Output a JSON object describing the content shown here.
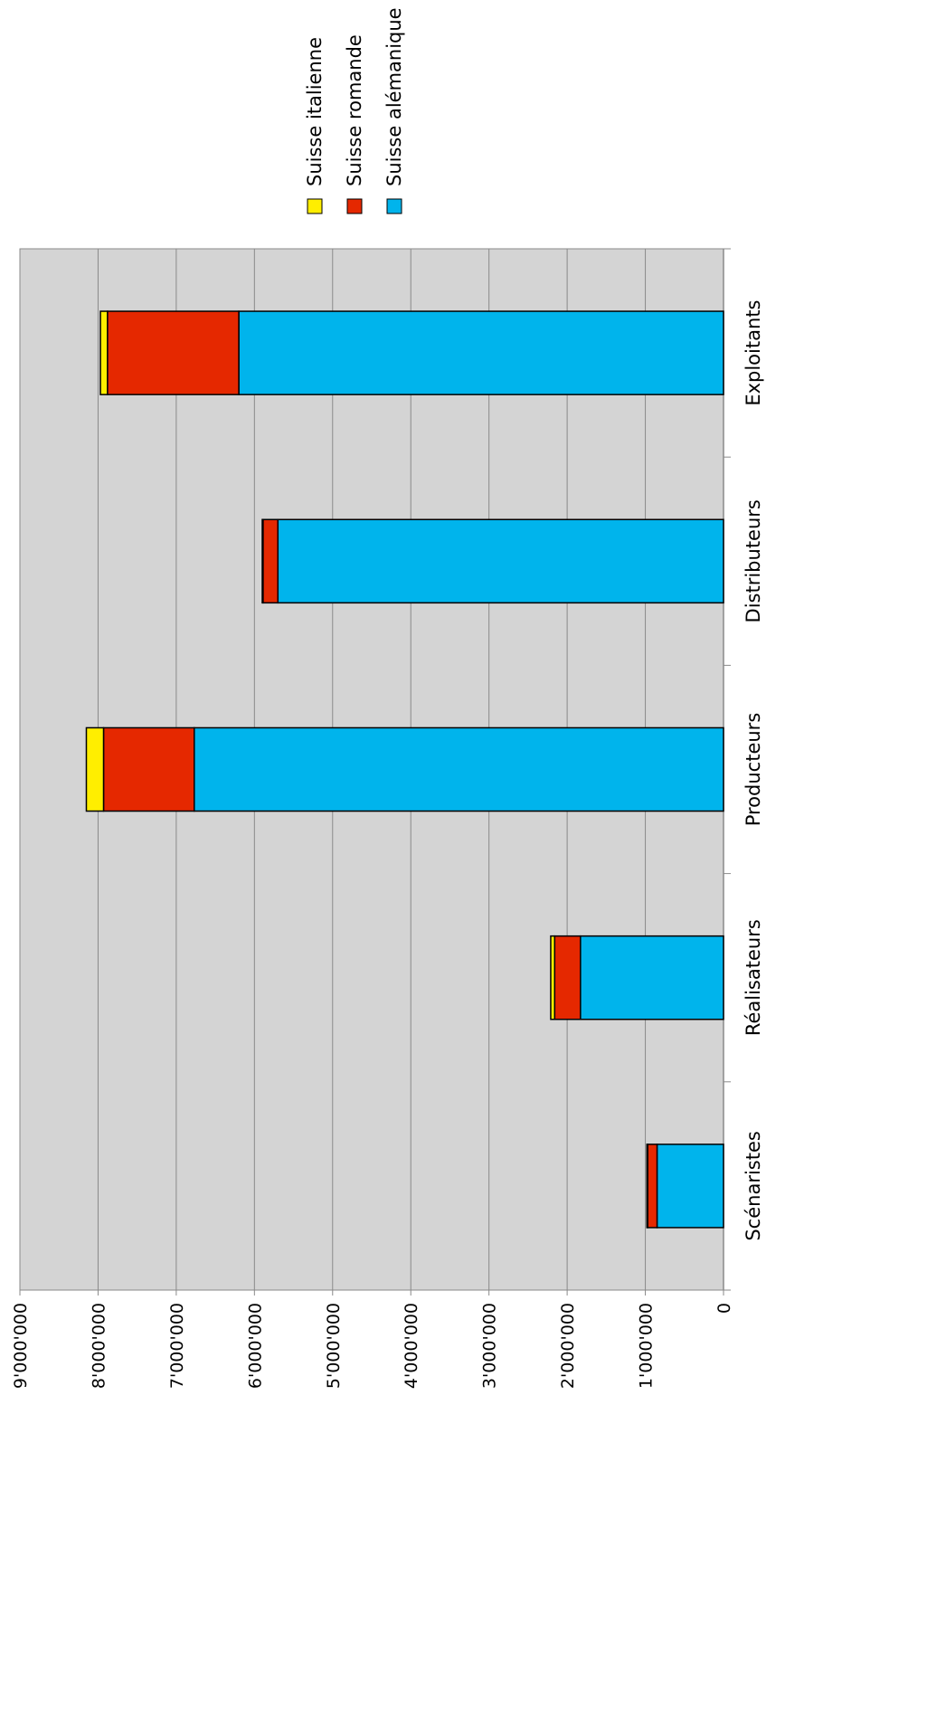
{
  "chart_data": {
    "type": "bar",
    "stacked": true,
    "orientation": "rotated-90-clockwise",
    "categories": [
      "Scénaristes",
      "Réalisateurs",
      "Producteurs",
      "Distributeurs",
      "Exploitants"
    ],
    "series": [
      {
        "name": "Suisse alémanique",
        "color": "#00b4ec",
        "values": [
          850000,
          1830000,
          6770000,
          5700000,
          6200000
        ]
      },
      {
        "name": "Suisse romande",
        "color": "#e52800",
        "values": [
          120000,
          330000,
          1160000,
          190000,
          1680000
        ]
      },
      {
        "name": "Suisse italienne",
        "color": "#ffee00",
        "values": [
          10000,
          50000,
          220000,
          10000,
          90000
        ]
      }
    ],
    "ylim": [
      0,
      9000000
    ],
    "yticks": [
      "0",
      "1'000'000",
      "2'000'000",
      "3'000'000",
      "4'000'000",
      "5'000'000",
      "6'000'000",
      "7'000'000",
      "8'000'000",
      "9'000'000"
    ],
    "grid": true,
    "plot_background": "#d4d4d4",
    "legend": {
      "position": "top",
      "order": [
        "Suisse italienne",
        "Suisse romande",
        "Suisse alémanique"
      ]
    }
  }
}
